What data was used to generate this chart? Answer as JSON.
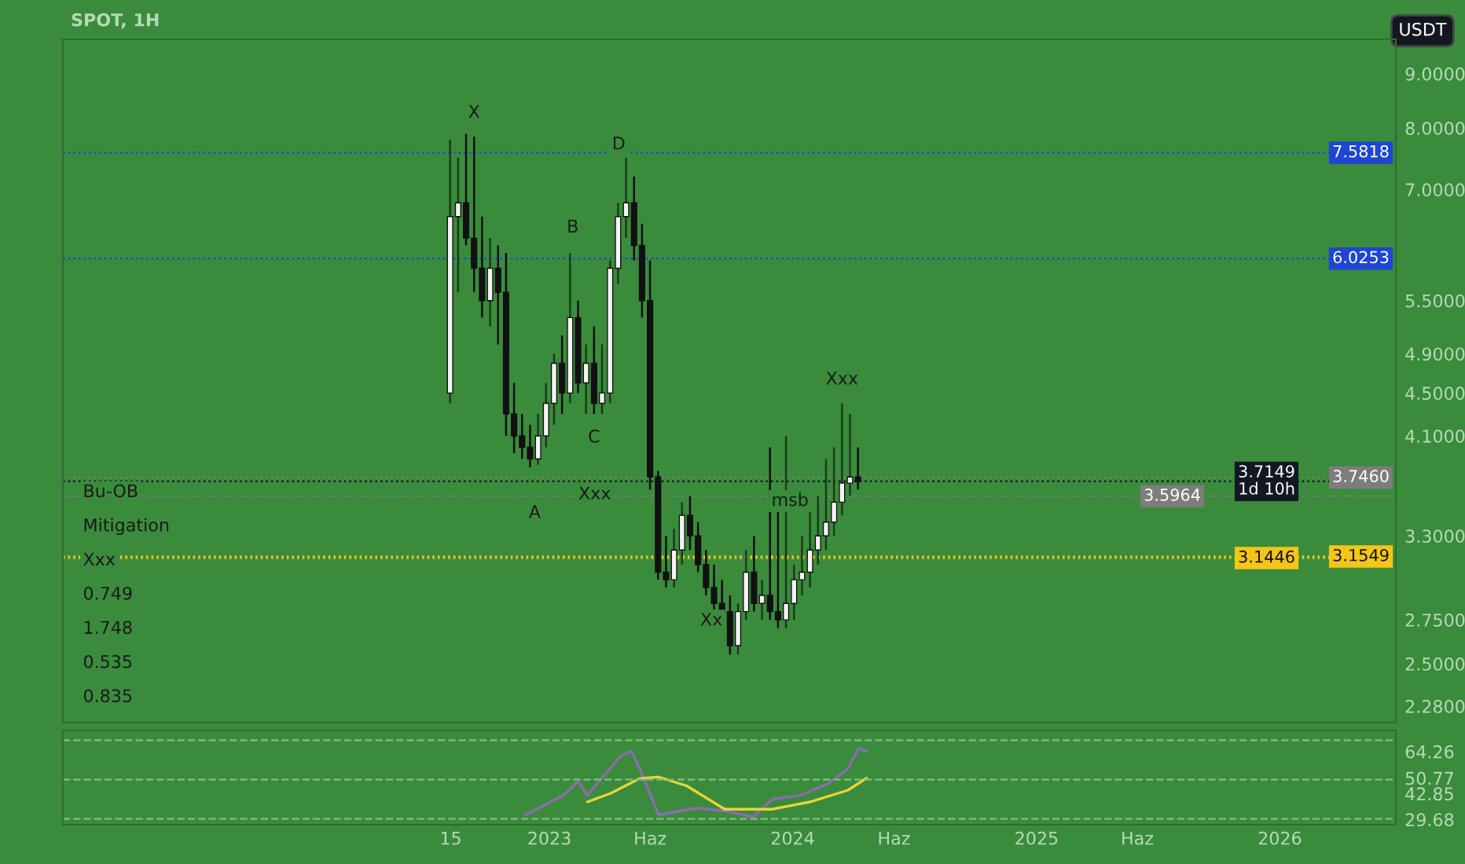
{
  "chart_data": [
    {
      "type": "candlestick",
      "title": "SPOT, 1H",
      "ylabel": "USDT",
      "log": true,
      "tick_labels": "y",
      "xlim": [
        "2021-01-01",
        "2026-06-24"
      ],
      "ylim": [
        2.2,
        9.7
      ],
      "yticks": [
        {
          "value": 9.0,
          "label": "9.0000"
        },
        {
          "value": 8.0,
          "label": "8.0000"
        },
        {
          "value": 7.0,
          "label": "7.0000"
        },
        {
          "value": 5.5,
          "label": "5.5000"
        },
        {
          "value": 4.9,
          "label": "4.9000"
        },
        {
          "value": 4.5,
          "label": "4.5000"
        },
        {
          "value": 4.1,
          "label": "4.1000"
        },
        {
          "value": 3.3,
          "label": "3.3000"
        },
        {
          "value": 2.75,
          "label": "2.7500"
        },
        {
          "value": 2.5,
          "label": "2.5000"
        },
        {
          "value": 2.28,
          "label": "2.2800"
        }
      ],
      "x": [
        "2022-08-05",
        "2022-08-17",
        "2022-08-29",
        "2022-09-10",
        "2022-09-22",
        "2022-10-04",
        "2022-10-16",
        "2022-10-28",
        "2022-11-09",
        "2022-11-21",
        "2022-12-03",
        "2022-12-15",
        "2022-12-27",
        "2023-01-08",
        "2023-01-20",
        "2023-02-01",
        "2023-02-13",
        "2023-02-25",
        "2023-03-09",
        "2023-03-21",
        "2023-04-02",
        "2023-04-14",
        "2023-04-26",
        "2023-05-08",
        "2023-05-20",
        "2023-06-01",
        "2023-06-13",
        "2023-06-25",
        "2023-07-07",
        "2023-07-19",
        "2023-07-31",
        "2023-08-12",
        "2023-08-24",
        "2023-09-05",
        "2023-09-17",
        "2023-09-29",
        "2023-10-11",
        "2023-10-23",
        "2023-11-04",
        "2023-11-16",
        "2023-11-28",
        "2023-12-10",
        "2023-12-22",
        "2024-01-03",
        "2024-01-15",
        "2024-01-27",
        "2024-02-08",
        "2024-02-20",
        "2024-03-03",
        "2024-03-15",
        "2024-03-27",
        "2024-04-08"
      ],
      "ohlc": [
        [
          4.5,
          7.8,
          4.4,
          6.6
        ],
        [
          6.6,
          7.5,
          5.6,
          6.8
        ],
        [
          6.8,
          7.9,
          6.2,
          6.3
        ],
        [
          6.3,
          7.85,
          5.6,
          5.9
        ],
        [
          5.9,
          6.6,
          5.3,
          5.5
        ],
        [
          5.5,
          6.3,
          5.2,
          5.9
        ],
        [
          5.9,
          6.2,
          5.0,
          5.6
        ],
        [
          5.6,
          6.1,
          4.1,
          4.3
        ],
        [
          4.3,
          4.6,
          3.95,
          4.1
        ],
        [
          4.1,
          4.3,
          3.9,
          4.0
        ],
        [
          4.0,
          4.2,
          3.83,
          3.9
        ],
        [
          3.9,
          4.3,
          3.85,
          4.1
        ],
        [
          4.1,
          4.6,
          4.0,
          4.4
        ],
        [
          4.4,
          4.9,
          4.2,
          4.8
        ],
        [
          4.8,
          5.1,
          4.3,
          4.5
        ],
        [
          4.5,
          6.1,
          4.4,
          5.3
        ],
        [
          5.3,
          5.5,
          4.5,
          4.6
        ],
        [
          4.6,
          5.0,
          4.3,
          4.8
        ],
        [
          4.8,
          5.2,
          4.3,
          4.4
        ],
        [
          4.4,
          5.0,
          4.3,
          4.5
        ],
        [
          4.5,
          6.0,
          4.4,
          5.9
        ],
        [
          5.9,
          6.8,
          5.7,
          6.6
        ],
        [
          6.6,
          7.5,
          6.3,
          6.8
        ],
        [
          6.8,
          7.2,
          6.0,
          6.2
        ],
        [
          6.2,
          6.5,
          5.3,
          5.5
        ],
        [
          5.5,
          6.0,
          3.65,
          3.75
        ],
        [
          3.75,
          3.8,
          3.0,
          3.05
        ],
        [
          3.05,
          3.3,
          2.95,
          3.0
        ],
        [
          3.0,
          3.35,
          2.95,
          3.2
        ],
        [
          3.2,
          3.55,
          3.1,
          3.45
        ],
        [
          3.45,
          3.6,
          3.2,
          3.3
        ],
        [
          3.3,
          3.4,
          3.05,
          3.1
        ],
        [
          3.1,
          3.2,
          2.9,
          2.95
        ],
        [
          2.95,
          3.1,
          2.8,
          2.85
        ],
        [
          2.85,
          3.0,
          2.7,
          2.8
        ],
        [
          2.8,
          2.9,
          2.55,
          2.6
        ],
        [
          2.6,
          2.85,
          2.55,
          2.8
        ],
        [
          2.8,
          3.2,
          2.75,
          3.05
        ],
        [
          3.05,
          3.3,
          2.8,
          2.85
        ],
        [
          2.85,
          3.0,
          2.75,
          2.9
        ],
        [
          2.9,
          4.0,
          2.75,
          2.8
        ],
        [
          2.8,
          3.5,
          2.7,
          2.75
        ],
        [
          2.75,
          4.1,
          2.7,
          2.85
        ],
        [
          2.85,
          3.1,
          2.75,
          3.0
        ],
        [
          3.0,
          3.3,
          2.9,
          3.05
        ],
        [
          3.05,
          3.5,
          2.95,
          3.2
        ],
        [
          3.2,
          3.6,
          3.1,
          3.3
        ],
        [
          3.3,
          3.9,
          3.2,
          3.4
        ],
        [
          3.4,
          4.0,
          3.3,
          3.55
        ],
        [
          3.55,
          4.4,
          3.45,
          3.7
        ],
        [
          3.7,
          4.3,
          3.6,
          3.75
        ],
        [
          3.75,
          4.0,
          3.65,
          3.7149
        ]
      ],
      "ref_lines": [
        {
          "axis": "y",
          "value": 7.5818,
          "label": "7.5818",
          "color": "#1f45d6",
          "line_style": "dotted"
        },
        {
          "axis": "y",
          "value": 6.0253,
          "label": "6.0253",
          "color": "#1f45d6",
          "line_style": "dotted"
        },
        {
          "axis": "y",
          "value": 3.746,
          "label": "3.7460",
          "color": "#7d7d7d",
          "line_style": "dotted"
        },
        {
          "axis": "y",
          "value": 3.7149,
          "label": "3.7149\n1d 10h",
          "color": "#131722",
          "line_style": "dotted"
        },
        {
          "axis": "y",
          "value": 3.5964,
          "label": "3.5964",
          "color": "#7d7d7d",
          "line_style": "dotted"
        },
        {
          "axis": "y",
          "value": 3.1549,
          "label": "3.1549",
          "color": "#f5c518",
          "line_style": "dotted"
        },
        {
          "axis": "y",
          "value": 3.1446,
          "label": "3.1446",
          "color": "#f5c518",
          "line_style": "dotted"
        }
      ],
      "annotations": [
        {
          "text": "X",
          "x": "2022-09-10",
          "y": 7.85
        },
        "0.835",
        {
          "text": "D",
          "x": "2023-04-15",
          "y": 7.33
        },
        "0.535",
        "1.748",
        {
          "text": "B",
          "x": "2023-02-05",
          "y": 6.12
        },
        {
          "text": "C",
          "x": "2023-03-09",
          "y": 4.3
        },
        "0.749",
        {
          "text": "A",
          "x": "2022-12-10",
          "y": 3.65
        },
        {
          "text": "Xxx",
          "x": "2023-03-10",
          "y": 3.8
        },
        {
          "text": "Xxx",
          "x": "2024-03-15",
          "y": 4.4
        },
        {
          "text": "msb",
          "x": "2023-12-28",
          "y": 3.38
        },
        {
          "text": "Xx",
          "x": "2023-09-01",
          "y": 2.89
        },
        "Xxx",
        "Mitigation",
        "Bu-OB"
      ]
    },
    {
      "type": "line",
      "xlim": [
        "2021-01-01",
        "2026-06-24"
      ],
      "xticks": [
        {
          "value": "2022-08-06",
          "label": "15"
        },
        {
          "value": "2023-01-01",
          "label": "2023"
        },
        {
          "value": "2023-06-01",
          "label": "Haz"
        },
        {
          "value": "2024-01-01",
          "label": "2024"
        },
        {
          "value": "2024-06-01",
          "label": "Haz"
        },
        {
          "value": "2025-01-01",
          "label": "2025"
        },
        {
          "value": "2025-06-01",
          "label": "Haz"
        },
        {
          "value": "2026-01-01",
          "label": "2026"
        }
      ],
      "ylim": [
        27,
        75
      ],
      "yticks": [
        {
          "value": 64.26,
          "label": "64.26"
        },
        {
          "value": 50.77,
          "label": "50.77"
        },
        {
          "value": 42.85,
          "label": "42.85"
        },
        {
          "value": 29.68,
          "label": "29.68"
        }
      ],
      "series": [
        {
          "color": "#8e6bb0",
          "x": [
            "2022-11-26",
            "2023-01-22",
            "2023-02-13",
            "2023-02-27",
            "2023-04-18",
            "2023-05-04",
            "2023-05-16",
            "2023-06-14",
            "2023-08-09",
            "2023-09-21",
            "2023-11-03",
            "2023-12-01",
            "2024-01-13",
            "2024-02-24",
            "2024-03-24",
            "2024-04-09",
            "2024-04-21"
          ],
          "values": [
            32,
            42,
            49,
            42,
            62,
            64.5,
            56,
            32,
            35.5,
            34,
            31,
            40,
            42,
            48,
            55.7,
            66,
            64.26
          ]
        },
        {
          "color": "#e8d43a",
          "x": [
            "2023-02-27",
            "2023-04-03",
            "2023-05-16",
            "2023-06-14",
            "2023-07-26",
            "2023-09-21",
            "2023-12-01",
            "2024-01-27",
            "2024-03-24",
            "2024-04-21"
          ],
          "values": [
            38.6,
            43,
            50.5,
            51.3,
            46.8,
            34.9,
            34.9,
            38.6,
            44.6,
            50.77
          ]
        }
      ],
      "ref_lines": [
        {
          "axis": "y",
          "value": 70,
          "label": null,
          "color": "#7fb87f",
          "line_style": "dashed"
        },
        {
          "axis": "y",
          "value": 50,
          "label": null,
          "color": "#7fb87f",
          "line_style": "dashed"
        },
        {
          "axis": "y",
          "value": 30,
          "label": null,
          "color": "#7fb87f",
          "line_style": "dashed"
        }
      ]
    }
  ]
}
